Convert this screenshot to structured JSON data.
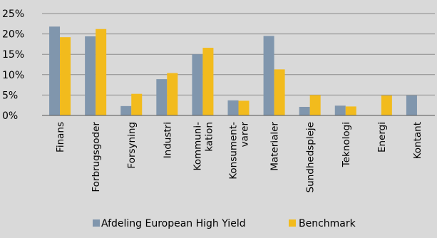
{
  "chart_data": {
    "type": "bar",
    "categories": [
      [
        "Finans"
      ],
      [
        "Forbrugsgoder"
      ],
      [
        "Forsyning"
      ],
      [
        "Industri"
      ],
      [
        "Kommuni-",
        "kation"
      ],
      [
        "Konsument-",
        "varer"
      ],
      [
        "Materialer"
      ],
      [
        "Sundhedspleje"
      ],
      [
        "Teknologi"
      ],
      [
        "Energi"
      ],
      [
        "Kontant"
      ]
    ],
    "series": [
      {
        "name": "Afdeling European High Yield",
        "color": "#8096ad",
        "values": [
          21.8,
          19.4,
          2.3,
          8.9,
          15.0,
          3.7,
          19.5,
          2.1,
          2.4,
          0,
          4.9
        ]
      },
      {
        "name": "Benchmark",
        "color": "#f2bb1d",
        "values": [
          19.2,
          21.2,
          5.3,
          10.4,
          16.6,
          3.6,
          11.3,
          5.0,
          2.2,
          4.9,
          0
        ]
      }
    ],
    "yticks": [
      "0%",
      "5%",
      "10%",
      "15%",
      "20%",
      "25%"
    ],
    "ylim": [
      0,
      25
    ],
    "grid": true,
    "legend_position": "bottom"
  }
}
